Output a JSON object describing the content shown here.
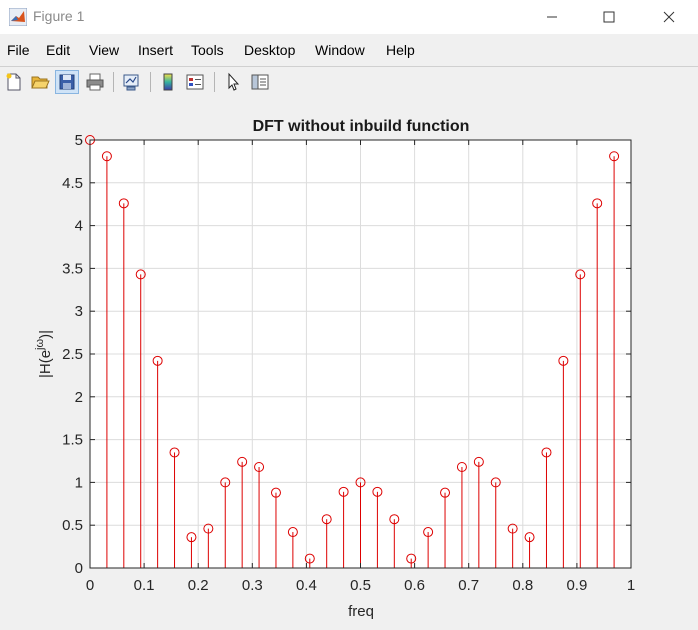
{
  "window": {
    "title": "Figure 1"
  },
  "menu": {
    "file": "File",
    "edit": "Edit",
    "view": "View",
    "insert": "Insert",
    "tools": "Tools",
    "desktop": "Desktop",
    "window": "Window",
    "help": "Help"
  },
  "toolbar": {
    "icons": [
      "new-figure-icon",
      "open-file-icon",
      "save-figure-icon",
      "print-figure-icon",
      "link-plot-icon",
      "insert-colorbar-icon",
      "insert-legend-icon",
      "edit-plot-pointer-icon",
      "open-property-inspector-icon"
    ]
  },
  "chart_data": {
    "type": "stem",
    "title": "DFT without inbuild function",
    "xlabel": "freq",
    "ylabel": "|H(e^{jω})|",
    "xlim": [
      0,
      1
    ],
    "ylim": [
      0,
      5
    ],
    "grid": true,
    "color": "#dd0000",
    "marker": "circle",
    "x_ticks": [
      "0",
      "0.1",
      "0.2",
      "0.3",
      "0.4",
      "0.5",
      "0.6",
      "0.7",
      "0.8",
      "0.9",
      "1"
    ],
    "y_ticks": [
      "0",
      "0.5",
      "1",
      "1.5",
      "2",
      "2.5",
      "3",
      "3.5",
      "4",
      "4.5",
      "5"
    ],
    "x": [
      0,
      0.03125,
      0.0625,
      0.09375,
      0.125,
      0.15625,
      0.1875,
      0.21875,
      0.25,
      0.28125,
      0.3125,
      0.34375,
      0.375,
      0.40625,
      0.4375,
      0.46875,
      0.5,
      0.53125,
      0.5625,
      0.59375,
      0.625,
      0.65625,
      0.6875,
      0.71875,
      0.75,
      0.78125,
      0.8125,
      0.84375,
      0.875,
      0.90625,
      0.9375,
      0.96875
    ],
    "y": [
      5,
      4.81,
      4.26,
      3.43,
      2.42,
      1.35,
      0.36,
      0.46,
      1.0,
      1.24,
      1.18,
      0.88,
      0.42,
      0.11,
      0.57,
      0.89,
      1.0,
      0.89,
      0.57,
      0.11,
      0.42,
      0.88,
      1.18,
      1.24,
      1.0,
      0.46,
      0.36,
      1.35,
      2.42,
      3.43,
      4.26,
      4.81
    ]
  }
}
